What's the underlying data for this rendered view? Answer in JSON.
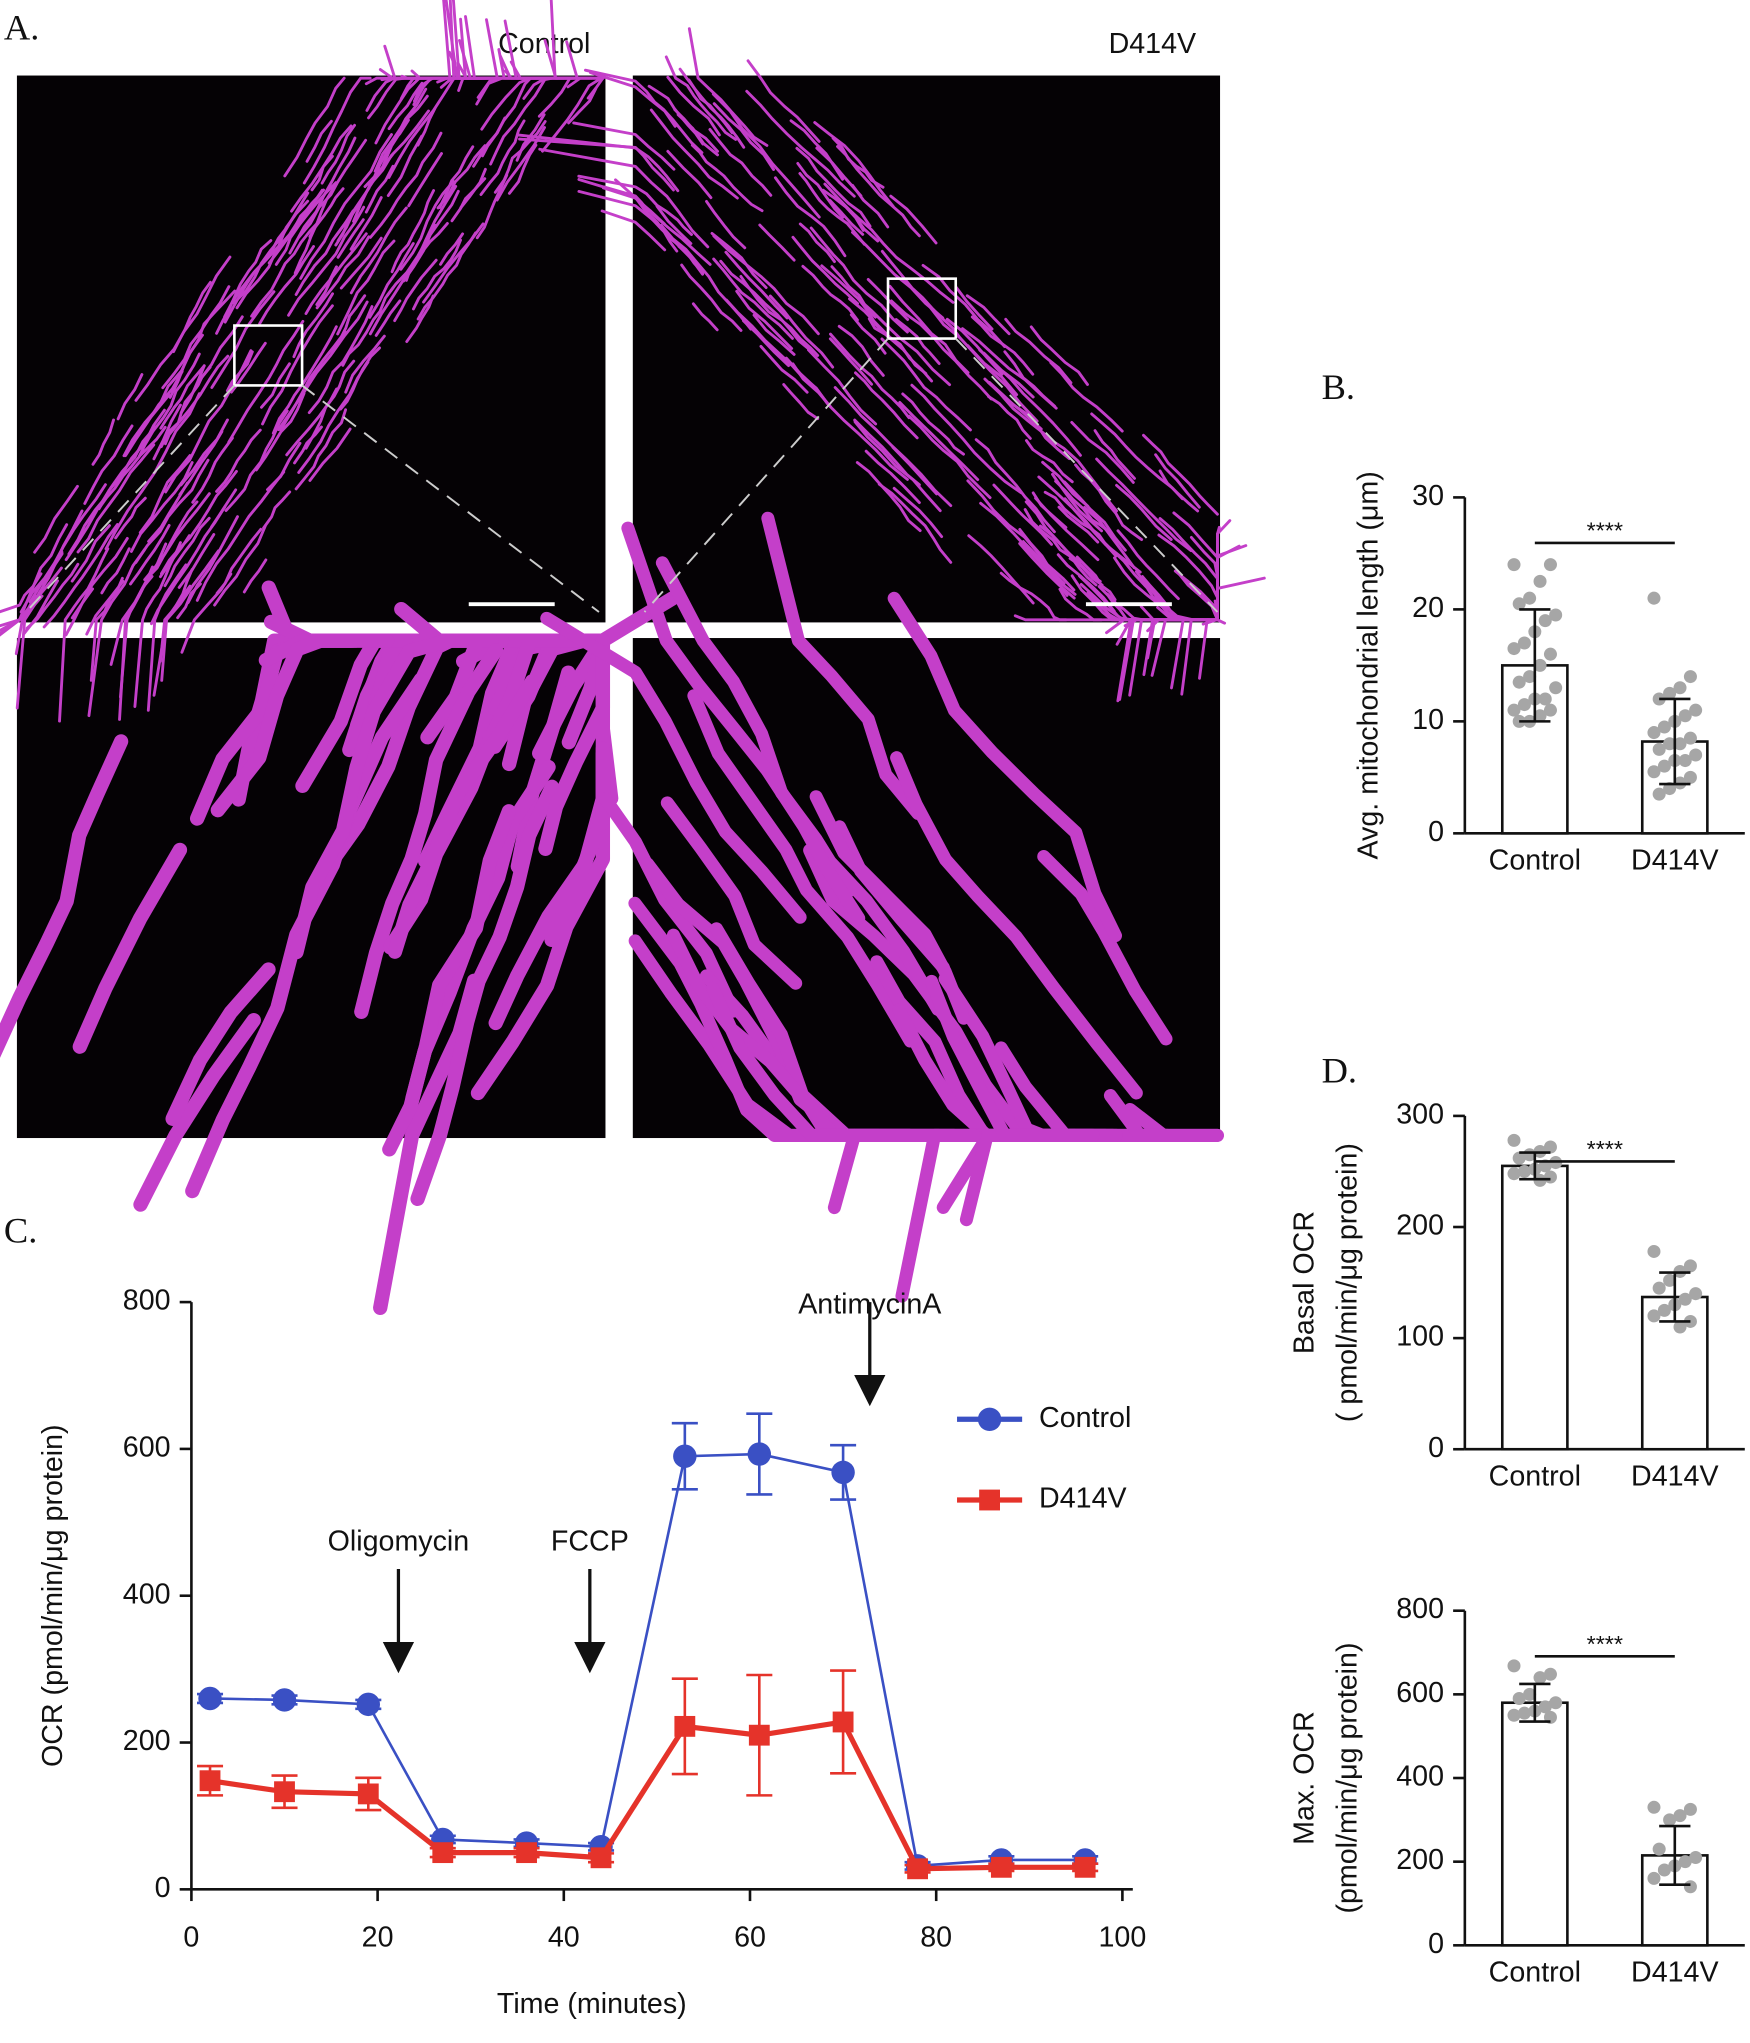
{
  "panel_a": {
    "label": "A.",
    "titles": [
      "Control",
      "D414V"
    ]
  },
  "chart_data": [
    {
      "type": "bar",
      "panel_label": "B.",
      "ylabel": [
        "Avg. mitochondrial length (μm)"
      ],
      "categories": [
        "Control",
        "D414V"
      ],
      "values": [
        15,
        8.2
      ],
      "errors": [
        5,
        3.8
      ],
      "points": [
        [
          24,
          24,
          22.5,
          21,
          20.5,
          19.5,
          19,
          18,
          17,
          16.5,
          16,
          15,
          14,
          13.5,
          13,
          12,
          12,
          11.5,
          11,
          11,
          10.5,
          10,
          10
        ],
        [
          21,
          14,
          13,
          12.5,
          12,
          11,
          10.5,
          10,
          9.5,
          9,
          8.5,
          8,
          8,
          7.5,
          7,
          6.5,
          6.5,
          6,
          5.5,
          5,
          4.5,
          4,
          3.5
        ]
      ],
      "bar_color": "#ffffff",
      "point_color": "#a6a6a6",
      "significance": "****",
      "ylim": [
        0,
        30
      ],
      "yticks": [
        0,
        10,
        20,
        30
      ]
    },
    {
      "type": "line",
      "panel_label": "C.",
      "ylabel": [
        "OCR (pmol/min/μg protein)"
      ],
      "xlabel": "Time (minutes)",
      "x": [
        2,
        10,
        19,
        27,
        36,
        44,
        53,
        61,
        70,
        78,
        87,
        96
      ],
      "series": [
        {
          "name": "Control",
          "color": "#3a50c4",
          "marker": "circle",
          "values": [
            260,
            258,
            252,
            68,
            63,
            58,
            590,
            593,
            568,
            32,
            40,
            40
          ],
          "errors": [
            6,
            6,
            6,
            5,
            5,
            5,
            45,
            55,
            37,
            5,
            5,
            5
          ]
        },
        {
          "name": "D414V",
          "color": "#e5332a",
          "marker": "square",
          "values": [
            148,
            133,
            130,
            50,
            50,
            43,
            222,
            210,
            228,
            28,
            30,
            30
          ],
          "errors": [
            20,
            22,
            22,
            6,
            6,
            6,
            65,
            82,
            70,
            5,
            5,
            5
          ]
        }
      ],
      "annotations": [
        "Oligomycin",
        "FCCP",
        "AntimycinA"
      ],
      "xlim": [
        0,
        100
      ],
      "xticks": [
        0,
        20,
        40,
        60,
        80,
        100
      ],
      "ylim": [
        0,
        800
      ],
      "yticks": [
        0,
        200,
        400,
        600,
        800
      ]
    },
    {
      "type": "bar",
      "panel_label": "D.",
      "ylabel": [
        "Basal OCR",
        "( pmol/min/μg protein)"
      ],
      "categories": [
        "Control",
        "D414V"
      ],
      "values": [
        255,
        137
      ],
      "errors": [
        12,
        22
      ],
      "points": [
        [
          278,
          272,
          268,
          265,
          262,
          258,
          255,
          252,
          250,
          248,
          245,
          242
        ],
        [
          178,
          165,
          160,
          152,
          145,
          140,
          135,
          130,
          125,
          120,
          115,
          110
        ]
      ],
      "bar_color": "#ffffff",
      "point_color": "#a6a6a6",
      "significance": "****",
      "ylim": [
        0,
        300
      ],
      "yticks": [
        0,
        100,
        200,
        300
      ]
    },
    {
      "type": "bar",
      "ylabel": [
        "Max. OCR",
        "(pmol/min/μg protein)"
      ],
      "categories": [
        "Control",
        "D414V"
      ],
      "values": [
        580,
        215
      ],
      "errors": [
        45,
        70
      ],
      "points": [
        [
          668,
          648,
          640,
          600,
          590,
          580,
          570,
          560,
          555,
          550,
          545
        ],
        [
          330,
          325,
          310,
          300,
          230,
          210,
          200,
          190,
          180,
          160,
          140
        ]
      ],
      "bar_color": "#ffffff",
      "point_color": "#a6a6a6",
      "significance": "****",
      "ylim": [
        0,
        800
      ],
      "yticks": [
        0,
        200,
        400,
        600,
        800
      ]
    }
  ]
}
